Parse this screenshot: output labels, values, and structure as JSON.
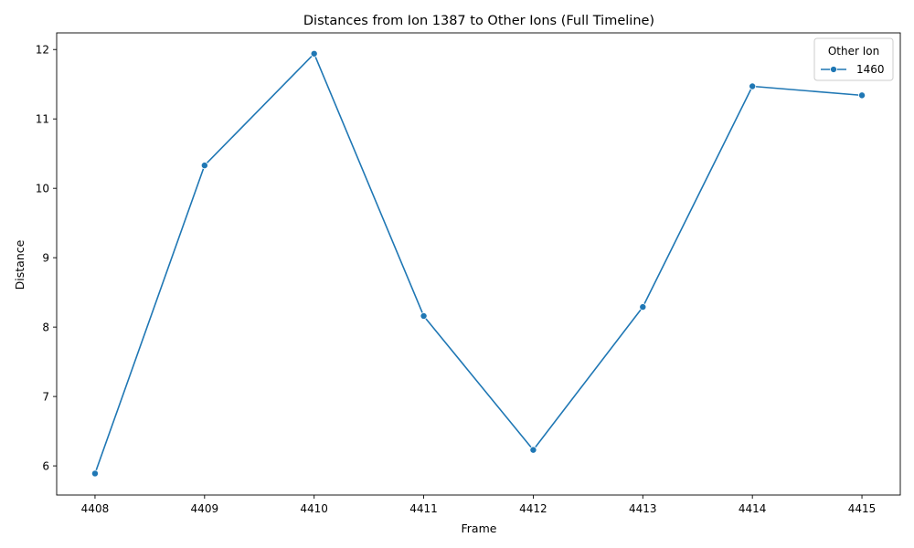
{
  "chart_data": {
    "type": "line",
    "title": "Distances from Ion 1387 to Other Ions (Full Timeline)",
    "xlabel": "Frame",
    "ylabel": "Distance",
    "x": [
      4408,
      4409,
      4410,
      4411,
      4412,
      4413,
      4414,
      4415
    ],
    "xticks": [
      "4408",
      "4409",
      "4410",
      "4411",
      "4412",
      "4413",
      "4414",
      "4415"
    ],
    "yticks": [
      "6",
      "7",
      "8",
      "9",
      "10",
      "11",
      "12"
    ],
    "xlim": [
      4407.65,
      4415.35
    ],
    "ylim": [
      5.58,
      12.24
    ],
    "grid": false,
    "legend": {
      "title": "Other Ion",
      "placement": "top-right"
    },
    "series": [
      {
        "name": "1460",
        "color": "#1f77b4",
        "marker": "circle",
        "values": [
          5.89,
          10.33,
          11.94,
          8.16,
          6.23,
          8.29,
          11.47,
          11.34
        ]
      }
    ]
  }
}
